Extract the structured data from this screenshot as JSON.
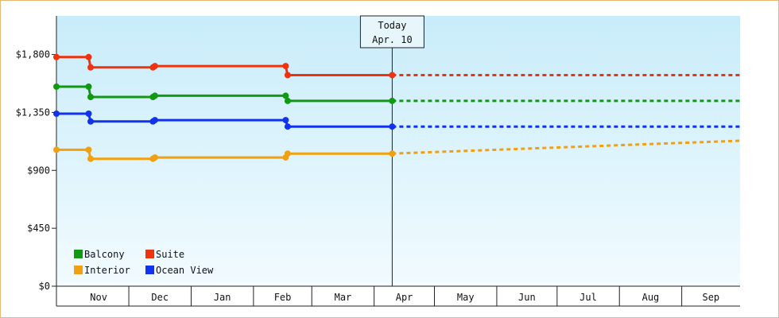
{
  "chart_data": {
    "type": "line",
    "title": "",
    "xlabel": "",
    "ylabel": "",
    "ylim": [
      0,
      2100
    ],
    "y_ticks": [
      {
        "value": 0,
        "label": "$0"
      },
      {
        "value": 450,
        "label": "$450"
      },
      {
        "value": 900,
        "label": "$900"
      },
      {
        "value": 1350,
        "label": "$1,350"
      },
      {
        "value": 1800,
        "label": "$1,800"
      }
    ],
    "x_start": "2023-10-26",
    "x_end": "2024-09-30",
    "months": [
      {
        "label": "Nov",
        "start": "2023-11-01",
        "end": "2023-12-01"
      },
      {
        "label": "Dec",
        "start": "2023-12-01",
        "end": "2024-01-01"
      },
      {
        "label": "Jan",
        "start": "2024-01-01",
        "end": "2024-02-01"
      },
      {
        "label": "Feb",
        "start": "2024-02-01",
        "end": "2024-03-01"
      },
      {
        "label": "Mar",
        "start": "2024-03-01",
        "end": "2024-04-01"
      },
      {
        "label": "Apr",
        "start": "2024-04-01",
        "end": "2024-05-01"
      },
      {
        "label": "May",
        "start": "2024-05-01",
        "end": "2024-06-01"
      },
      {
        "label": "Jun",
        "start": "2024-06-01",
        "end": "2024-07-01"
      },
      {
        "label": "Jul",
        "start": "2024-07-01",
        "end": "2024-08-01"
      },
      {
        "label": "Aug",
        "start": "2024-08-01",
        "end": "2024-09-01"
      },
      {
        "label": "Sep",
        "start": "2024-09-01",
        "end": "2024-09-30"
      }
    ],
    "today": {
      "title": "Today",
      "label": "Apr. 10",
      "date": "2024-04-10"
    },
    "series": [
      {
        "name": "Suite",
        "color": "#ee3311",
        "points": [
          [
            "2023-10-26",
            1780
          ],
          [
            "2023-11-11",
            1780
          ],
          [
            "2023-11-12",
            1700
          ],
          [
            "2023-12-13",
            1700
          ],
          [
            "2023-12-14",
            1710
          ],
          [
            "2024-02-17",
            1710
          ],
          [
            "2024-02-18",
            1640
          ],
          [
            "2024-04-10",
            1640
          ]
        ],
        "projection": [
          [
            "2024-04-10",
            1640
          ],
          [
            "2024-09-30",
            1640
          ]
        ]
      },
      {
        "name": "Balcony",
        "color": "#119911",
        "points": [
          [
            "2023-10-26",
            1550
          ],
          [
            "2023-11-11",
            1550
          ],
          [
            "2023-11-12",
            1470
          ],
          [
            "2023-12-13",
            1470
          ],
          [
            "2023-12-14",
            1480
          ],
          [
            "2024-02-17",
            1480
          ],
          [
            "2024-02-18",
            1440
          ],
          [
            "2024-04-10",
            1440
          ]
        ],
        "projection": [
          [
            "2024-04-10",
            1440
          ],
          [
            "2024-09-30",
            1440
          ]
        ]
      },
      {
        "name": "Ocean View",
        "color": "#1133ee",
        "points": [
          [
            "2023-10-26",
            1340
          ],
          [
            "2023-11-11",
            1340
          ],
          [
            "2023-11-12",
            1280
          ],
          [
            "2023-12-13",
            1280
          ],
          [
            "2023-12-14",
            1290
          ],
          [
            "2024-02-17",
            1290
          ],
          [
            "2024-02-18",
            1240
          ],
          [
            "2024-04-10",
            1240
          ]
        ],
        "projection": [
          [
            "2024-04-10",
            1240
          ],
          [
            "2024-09-30",
            1240
          ]
        ]
      },
      {
        "name": "Interior",
        "color": "#f0a010",
        "points": [
          [
            "2023-10-26",
            1060
          ],
          [
            "2023-11-11",
            1060
          ],
          [
            "2023-11-12",
            990
          ],
          [
            "2023-12-13",
            990
          ],
          [
            "2023-12-14",
            1000
          ],
          [
            "2024-02-17",
            1000
          ],
          [
            "2024-02-18",
            1030
          ],
          [
            "2024-04-10",
            1030
          ]
        ],
        "projection": [
          [
            "2024-04-10",
            1030
          ],
          [
            "2024-09-30",
            1130
          ]
        ]
      }
    ],
    "legend": {
      "placement": "bottom-left",
      "order": [
        "Balcony",
        "Suite",
        "Interior",
        "Ocean View"
      ]
    },
    "grid": false
  }
}
